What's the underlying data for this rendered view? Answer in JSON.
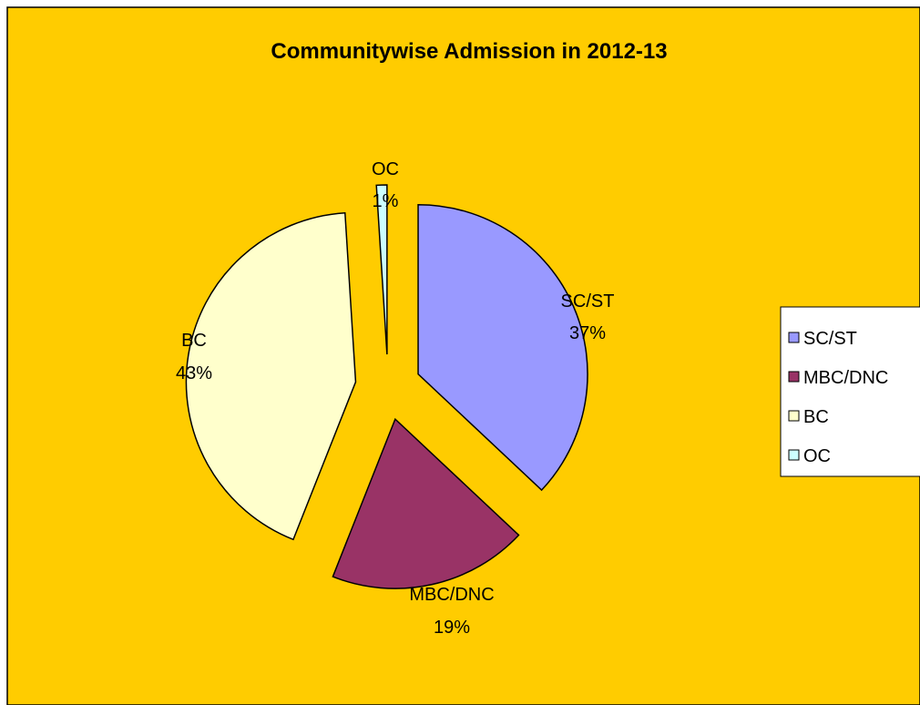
{
  "colors": {
    "background": "#FFCC00",
    "outline": "#000000",
    "legend_background": "#FFFFFF"
  },
  "chart_data": {
    "type": "pie",
    "title": "Communitywise Admission in 2012-13",
    "exploded": true,
    "legend_position": "right",
    "slices": [
      {
        "label": "SC/ST",
        "value": 37,
        "display": "37%",
        "color": "#9999FF"
      },
      {
        "label": "MBC/DNC",
        "value": 19,
        "display": "19%",
        "color": "#993366"
      },
      {
        "label": "BC",
        "value": 43,
        "display": "43%",
        "color": "#FFFFCC"
      },
      {
        "label": "OC",
        "value": 1,
        "display": "1%",
        "color": "#CCFFFF"
      }
    ]
  }
}
